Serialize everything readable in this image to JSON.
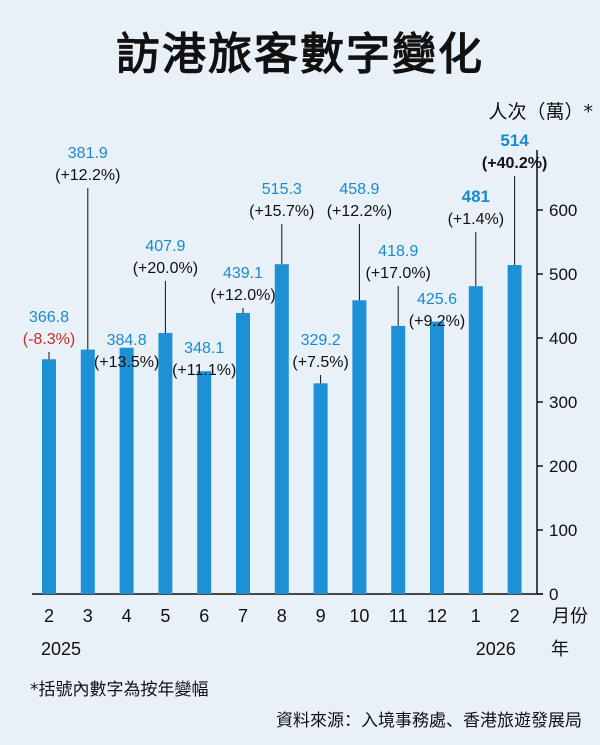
{
  "title": "訪港旅客數字變化",
  "footnote": "*括號內數字為按年變幅",
  "source": "資料來源：入境事務處、香港旅遊發展局",
  "colors": {
    "bar": "#1e90d6",
    "value_text": "#1a8ad0",
    "negative_text": "#d0262b",
    "axis": "#111111",
    "background": "#e8f1f8"
  },
  "chart_data": {
    "type": "bar",
    "ylabel": "人次（萬）*",
    "xlabel": "月份",
    "year_axis_label": "年",
    "ylim": [
      0,
      600
    ],
    "yticks": [
      0,
      100,
      200,
      300,
      400,
      500,
      600
    ],
    "categories": [
      "2",
      "3",
      "4",
      "5",
      "6",
      "7",
      "8",
      "9",
      "10",
      "11",
      "12",
      "1",
      "2"
    ],
    "years": [
      {
        "label": "2025",
        "index": 0
      },
      {
        "label": "2026",
        "index": 11
      }
    ],
    "values": [
      366.8,
      381.9,
      384.8,
      407.9,
      348.1,
      439.1,
      515.3,
      329.2,
      458.9,
      418.9,
      425.6,
      481,
      514
    ],
    "value_labels": [
      "366.8",
      "381.9",
      "384.8",
      "407.9",
      "348.1",
      "439.1",
      "515.3",
      "329.2",
      "458.9",
      "418.9",
      "425.6",
      "481",
      "514"
    ],
    "changes": [
      "(-8.3%)",
      "(+12.2%)",
      "(+13.5%)",
      "(+20.0%)",
      "(+11.1%)",
      "(+12.0%)",
      "(+15.7%)",
      "(+7.5%)",
      "(+12.2%)",
      "(+17.0%)",
      "(+9.2%)",
      "(+1.4%)",
      "(+40.2%)"
    ],
    "negative": [
      true,
      false,
      false,
      false,
      false,
      false,
      false,
      false,
      false,
      false,
      false,
      false,
      false
    ],
    "bold": [
      false,
      false,
      false,
      false,
      false,
      false,
      false,
      false,
      false,
      false,
      false,
      true,
      true
    ]
  }
}
